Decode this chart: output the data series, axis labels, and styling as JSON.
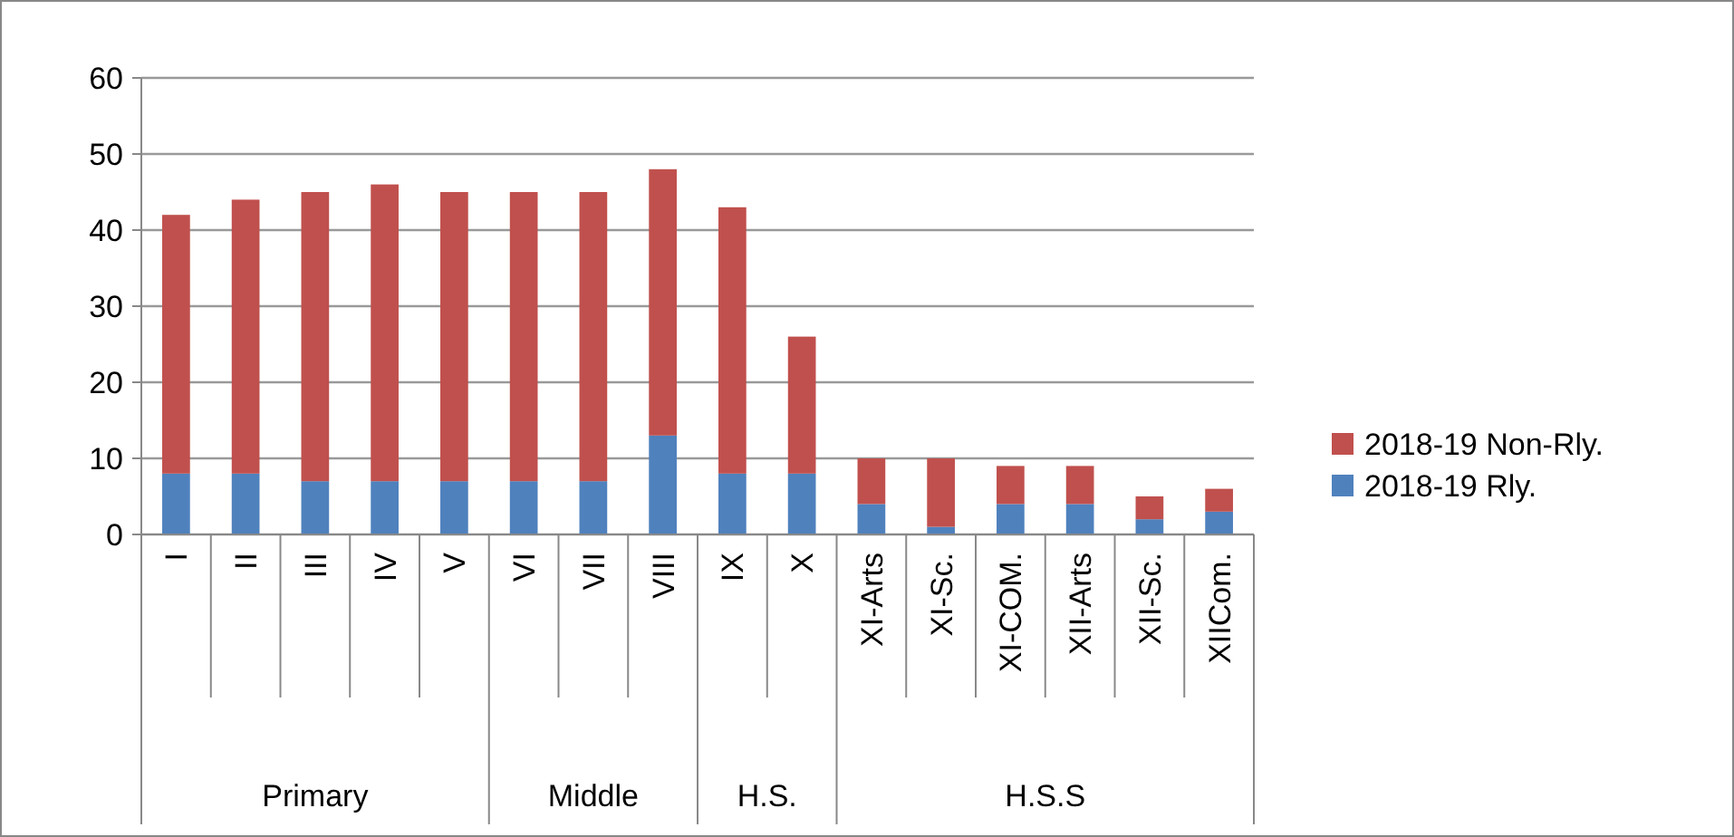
{
  "chart_data": {
    "type": "bar",
    "stacked": true,
    "categories": [
      "I",
      "II",
      "III",
      "IV",
      "V",
      "VI",
      "VII",
      "VIII",
      "IX",
      "X",
      "XI-Arts",
      "XI-Sc.",
      "XI-COM.",
      "XII-Arts",
      "XII-Sc.",
      "XIICom."
    ],
    "series": [
      {
        "name": "2018-19 Rly.",
        "color": "#4f81bd",
        "values": [
          8,
          8,
          7,
          7,
          7,
          7,
          7,
          13,
          8,
          8,
          4,
          1,
          4,
          4,
          2,
          3
        ]
      },
      {
        "name": "2018-19 Non-Rly.",
        "color": "#c0504d",
        "values": [
          34,
          36,
          38,
          39,
          38,
          38,
          38,
          35,
          35,
          18,
          6,
          9,
          5,
          5,
          3,
          3
        ]
      }
    ],
    "annotations": [
      "Primary",
      "Middle",
      "H.S.",
      "H.S.S"
    ],
    "ylim": [
      0,
      60
    ],
    "yticks": [
      0,
      10,
      20,
      30,
      40,
      50,
      60
    ],
    "grid": "y",
    "legend": "right"
  }
}
